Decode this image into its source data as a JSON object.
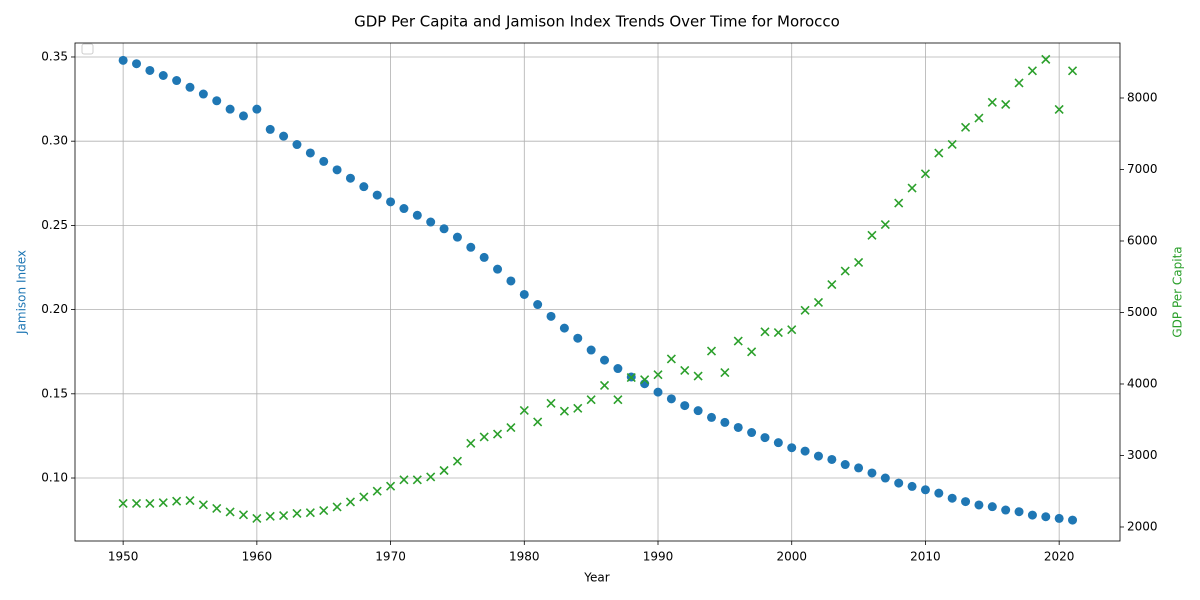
{
  "chart_data": {
    "type": "scatter",
    "title": "GDP Per Capita and Jamison Index Trends Over Time for Morocco",
    "xlabel": "Year",
    "ylabel": "Jamison Index",
    "y2label": "GDP Per Capita",
    "x": [
      1950,
      1951,
      1952,
      1953,
      1954,
      1955,
      1956,
      1957,
      1958,
      1959,
      1960,
      1961,
      1962,
      1963,
      1964,
      1965,
      1966,
      1967,
      1968,
      1969,
      1970,
      1971,
      1972,
      1973,
      1974,
      1975,
      1976,
      1977,
      1978,
      1979,
      1980,
      1981,
      1982,
      1983,
      1984,
      1985,
      1986,
      1987,
      1988,
      1989,
      1990,
      1991,
      1992,
      1993,
      1994,
      1995,
      1996,
      1997,
      1998,
      1999,
      2000,
      2001,
      2002,
      2003,
      2004,
      2005,
      2006,
      2007,
      2008,
      2009,
      2010,
      2011,
      2012,
      2013,
      2014,
      2015,
      2016,
      2017,
      2018,
      2019,
      2020,
      2021
    ],
    "series": [
      {
        "name": "Jamison Index",
        "color": "#1f77b4",
        "marker": "circle",
        "axis": "y",
        "values": [
          0.348,
          0.346,
          0.342,
          0.339,
          0.336,
          0.332,
          0.328,
          0.324,
          0.319,
          0.315,
          0.319,
          0.307,
          0.303,
          0.298,
          0.293,
          0.288,
          0.283,
          0.278,
          0.273,
          0.268,
          0.264,
          0.26,
          0.256,
          0.252,
          0.248,
          0.243,
          0.237,
          0.231,
          0.224,
          0.217,
          0.209,
          0.203,
          0.196,
          0.189,
          0.183,
          0.176,
          0.17,
          0.165,
          0.16,
          0.156,
          0.151,
          0.147,
          0.143,
          0.14,
          0.136,
          0.133,
          0.13,
          0.127,
          0.124,
          0.121,
          0.118,
          0.116,
          0.113,
          0.111,
          0.108,
          0.106,
          0.103,
          0.1,
          0.097,
          0.095,
          0.093,
          0.091,
          0.088,
          0.086,
          0.084,
          0.083,
          0.081,
          0.08,
          0.078,
          0.077,
          0.076,
          0.075
        ]
      },
      {
        "name": "GDP Per Capita",
        "color": "#2ca02c",
        "marker": "x",
        "axis": "y2",
        "values": [
          2330,
          2330,
          2330,
          2340,
          2360,
          2370,
          2310,
          2260,
          2210,
          2170,
          2120,
          2150,
          2160,
          2190,
          2200,
          2230,
          2280,
          2350,
          2420,
          2500,
          2570,
          2660,
          2660,
          2700,
          2790,
          2920,
          3170,
          3260,
          3300,
          3390,
          3630,
          3470,
          3730,
          3620,
          3660,
          3780,
          3980,
          3780,
          4090,
          4060,
          4130,
          4350,
          4190,
          4110,
          4460,
          4160,
          4600,
          4450,
          4730,
          4720,
          4760,
          5030,
          5140,
          5390,
          5580,
          5700,
          6080,
          6230,
          6530,
          6740,
          6940,
          7230,
          7350,
          7590,
          7720,
          7940,
          7910,
          8210,
          8380,
          8540,
          7840,
          8380
        ]
      }
    ],
    "xlim": [
      1946.4,
      2024.55
    ],
    "xticks": [
      1950,
      1960,
      1970,
      1980,
      1990,
      2000,
      2010,
      2020
    ],
    "ylim": [
      0.0626,
      0.3583
    ],
    "yticks": [
      0.1,
      0.15,
      0.2,
      0.25,
      0.3,
      0.35
    ],
    "y2lim": [
      1804,
      8769
    ],
    "y2ticks": [
      2000,
      3000,
      4000,
      5000,
      6000,
      7000,
      8000
    ],
    "grid": true
  }
}
